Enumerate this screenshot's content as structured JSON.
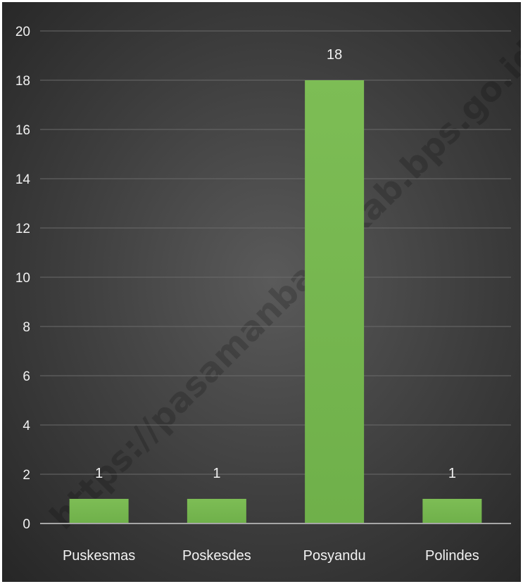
{
  "watermark": "https://pasamanbaratkab.bps.go.id",
  "colors": {
    "bar": "#6fb04a",
    "bar_top": "#7dbd55",
    "grid": "#6a6a6a",
    "axis": "#a6a6a6",
    "text": "#f2f2f2"
  },
  "chart_data": {
    "type": "bar",
    "title": "",
    "xlabel": "",
    "ylabel": "",
    "categories": [
      "Puskesmas",
      "Poskesdes",
      "Posyandu",
      "Polindes"
    ],
    "values": [
      1,
      1,
      18,
      1
    ],
    "data_labels": [
      "1",
      "1",
      "18",
      "1"
    ],
    "ylim": [
      0,
      20
    ],
    "yticks": [
      0,
      2,
      4,
      6,
      8,
      10,
      12,
      14,
      16,
      18,
      20
    ],
    "grid": true,
    "legend": "none"
  }
}
